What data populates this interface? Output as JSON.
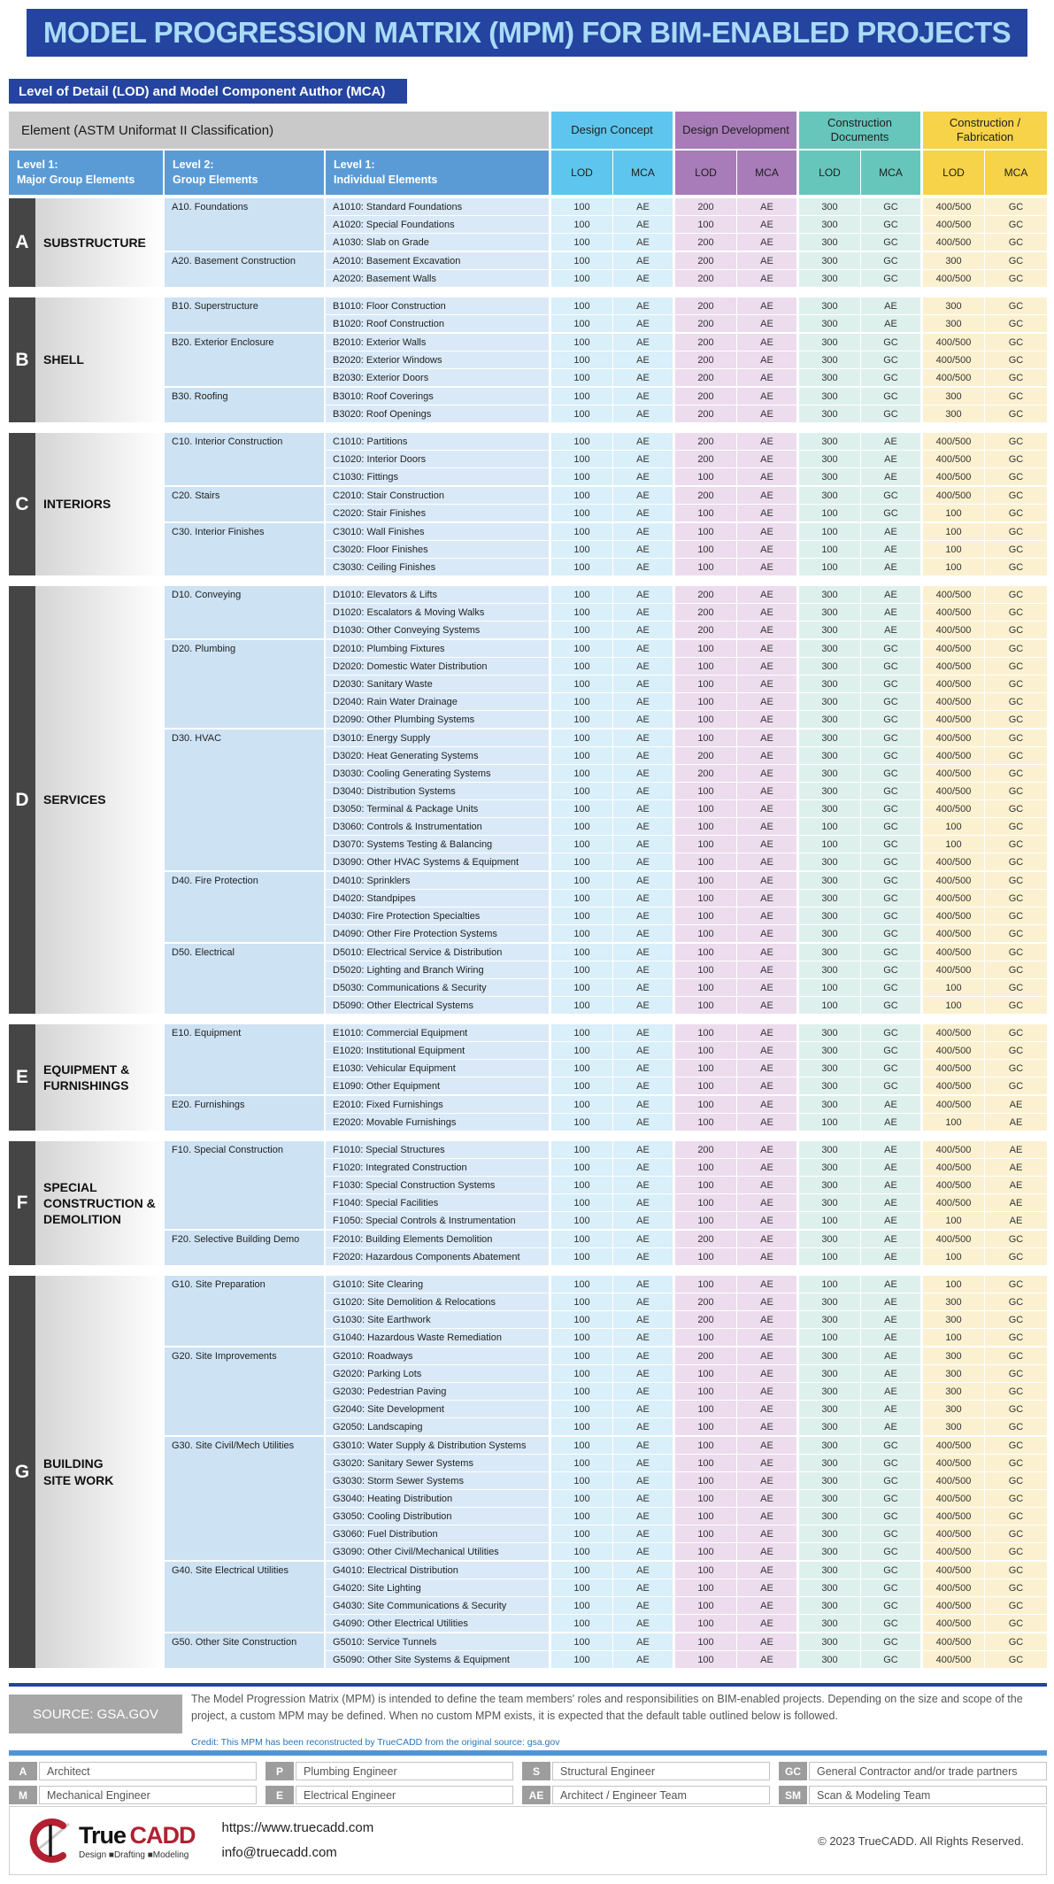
{
  "header": {
    "title": "MODEL PROGRESSION MATRIX (MPM) FOR BIM-ENABLED PROJECTS",
    "subtitle": "Level of Detail (LOD) and Model Component Author (MCA)",
    "element_header": "Element (ASTM Uniformat II Classification)",
    "level_columns": [
      "Level 1:\nMajor Group Elements",
      "Level 2:\nGroup Elements",
      "Level 1:\nIndividual Elements"
    ],
    "phases": [
      {
        "label": "Design Concept",
        "header_color": "#5ec6ee",
        "body_color": "#d9effa"
      },
      {
        "label": "Design Development",
        "header_color": "#a87cb8",
        "body_color": "#ecdcee"
      },
      {
        "label": "Construction Documents",
        "header_color": "#67c6bb",
        "body_color": "#def0eb"
      },
      {
        "label": "Construction / Fabrication",
        "header_color": "#f6d348",
        "body_color": "#fbf1d0"
      }
    ],
    "sub_columns": [
      "LOD",
      "MCA"
    ]
  },
  "sections": [
    {
      "letter": "A",
      "name": "SUBSTRUCTURE",
      "groups": [
        {
          "label": "A10. Foundations",
          "items": [
            {
              "n": "A1010: Standard Foundations",
              "v": "100 AE 200 AE 300 GC 400/500 GC"
            },
            {
              "n": "A1020: Special Foundations",
              "v": "100 AE 100 AE 300 GC 400/500 GC"
            },
            {
              "n": "A1030: Slab on Grade",
              "v": "100 AE 200 AE 300 GC 400/500 GC"
            }
          ]
        },
        {
          "label": "A20. Basement Construction",
          "items": [
            {
              "n": "A2010: Basement Excavation",
              "v": "100 AE 200 AE 300 GC 300 GC"
            },
            {
              "n": "A2020: Basement Walls",
              "v": "100 AE 200 AE 300 GC 400/500 GC"
            }
          ]
        }
      ]
    },
    {
      "letter": "B",
      "name": "SHELL",
      "groups": [
        {
          "label": "B10. Superstructure",
          "items": [
            {
              "n": "B1010: Floor Construction",
              "v": "100 AE 200 AE 300 AE 300 GC"
            },
            {
              "n": "B1020: Roof Construction",
              "v": "100 AE 200 AE 300 AE 300 GC"
            }
          ]
        },
        {
          "label": "B20. Exterior Enclosure",
          "items": [
            {
              "n": "B2010: Exterior Walls",
              "v": "100 AE 200 AE 300 GC 400/500 GC"
            },
            {
              "n": "B2020: Exterior Windows",
              "v": "100 AE 200 AE 300 GC 400/500 GC"
            },
            {
              "n": "B2030: Exterior Doors",
              "v": "100 AE 200 AE 300 GC 400/500 GC"
            }
          ]
        },
        {
          "label": "B30. Roofing",
          "items": [
            {
              "n": "B3010: Roof Coverings",
              "v": "100 AE 200 AE 300 GC 300 GC"
            },
            {
              "n": "B3020: Roof Openings",
              "v": "100 AE 200 AE 300 GC 300 GC"
            }
          ]
        }
      ]
    },
    {
      "letter": "C",
      "name": "INTERIORS",
      "groups": [
        {
          "label": "C10. Interior Construction",
          "items": [
            {
              "n": "C1010: Partitions",
              "v": "100 AE 200 AE 300 AE 400/500 GC"
            },
            {
              "n": "C1020: Interior Doors",
              "v": "100 AE 200 AE 300 AE 400/500 GC"
            },
            {
              "n": "C1030: Fittings",
              "v": "100 AE 100 AE 300 AE 400/500 GC"
            }
          ]
        },
        {
          "label": "C20. Stairs",
          "items": [
            {
              "n": "C2010: Stair Construction",
              "v": "100 AE 200 AE 300 GC 400/500 GC"
            },
            {
              "n": "C2020: Stair Finishes",
              "v": "100 AE 100 AE 100 GC 100 GC"
            }
          ]
        },
        {
          "label": "C30. Interior Finishes",
          "items": [
            {
              "n": "C3010: Wall Finishes",
              "v": "100 AE 100 AE 100 AE 100 GC"
            },
            {
              "n": "C3020: Floor Finishes",
              "v": "100 AE 100 AE 100 AE 100 GC"
            },
            {
              "n": "C3030: Ceiling Finishes",
              "v": "100 AE 100 AE 100 AE 100 GC"
            }
          ]
        }
      ]
    },
    {
      "letter": "D",
      "name": "SERVICES",
      "groups": [
        {
          "label": "D10. Conveying",
          "items": [
            {
              "n": "D1010: Elevators & Lifts",
              "v": "100 AE 200 AE 300 AE 400/500 GC"
            },
            {
              "n": "D1020: Escalators & Moving Walks",
              "v": "100 AE 200 AE 300 AE 400/500 GC"
            },
            {
              "n": "D1030: Other Conveying Systems",
              "v": "100 AE 200 AE 300 AE 400/500 GC"
            }
          ]
        },
        {
          "label": "D20. Plumbing",
          "items": [
            {
              "n": "D2010: Plumbing Fixtures",
              "v": "100 AE 100 AE 300 GC 400/500 GC"
            },
            {
              "n": "D2020: Domestic Water Distribution",
              "v": "100 AE 100 AE 300 GC 400/500 GC"
            },
            {
              "n": "D2030: Sanitary Waste",
              "v": "100 AE 100 AE 300 GC 400/500 GC"
            },
            {
              "n": "D2040: Rain Water Drainage",
              "v": "100 AE 100 AE 300 GC 400/500 GC"
            },
            {
              "n": "D2090: Other Plumbing Systems",
              "v": "100 AE 100 AE 300 GC 400/500 GC"
            }
          ]
        },
        {
          "label": "D30. HVAC",
          "items": [
            {
              "n": "D3010: Energy Supply",
              "v": "100 AE 100 AE 300 GC 400/500 GC"
            },
            {
              "n": "D3020: Heat Generating Systems",
              "v": "100 AE 200 AE 300 GC 400/500 GC"
            },
            {
              "n": "D3030: Cooling Generating Systems",
              "v": "100 AE 200 AE 300 GC 400/500 GC"
            },
            {
              "n": "D3040: Distribution Systems",
              "v": "100 AE 100 AE 300 GC 400/500 GC"
            },
            {
              "n": "D3050: Terminal & Package Units",
              "v": "100 AE 100 AE 300 GC 400/500 GC"
            },
            {
              "n": "D3060: Controls & Instrumentation",
              "v": "100 AE 100 AE 100 GC 100 GC"
            },
            {
              "n": "D3070: Systems Testing & Balancing",
              "v": "100 AE 100 AE 100 GC 100 GC"
            },
            {
              "n": "D3090: Other HVAC Systems & Equipment",
              "v": "100 AE 100 AE 300 GC 400/500 GC"
            }
          ]
        },
        {
          "label": "D40. Fire Protection",
          "items": [
            {
              "n": "D4010: Sprinklers",
              "v": "100 AE 100 AE 300 GC 400/500 GC"
            },
            {
              "n": "D4020: Standpipes",
              "v": "100 AE 100 AE 300 GC 400/500 GC"
            },
            {
              "n": "D4030: Fire Protection Specialties",
              "v": "100 AE 100 AE 300 GC 400/500 GC"
            },
            {
              "n": "D4090: Other Fire Protection Systems",
              "v": "100 AE 100 AE 300 GC 400/500 GC"
            }
          ]
        },
        {
          "label": "D50. Electrical",
          "items": [
            {
              "n": "D5010: Electrical Service & Distribution",
              "v": "100 AE 100 AE 300 GC 400/500 GC"
            },
            {
              "n": "D5020: Lighting and Branch Wiring",
              "v": "100 AE 100 AE 300 GC 400/500 GC"
            },
            {
              "n": "D5030: Communications & Security",
              "v": "100 AE 100 AE 100 GC 100 GC"
            },
            {
              "n": "D5090: Other Electrical Systems",
              "v": "100 AE 100 AE 100 GC 100 GC"
            }
          ]
        }
      ]
    },
    {
      "letter": "E",
      "name": "EQUIPMENT &\nFURNISHINGS",
      "groups": [
        {
          "label": "E10. Equipment",
          "items": [
            {
              "n": "E1010: Commercial Equipment",
              "v": "100 AE 100 AE 300 GC 400/500 GC"
            },
            {
              "n": "E1020: Institutional Equipment",
              "v": "100 AE 100 AE 300 GC 400/500 GC"
            },
            {
              "n": "E1030: Vehicular Equipment",
              "v": "100 AE 100 AE 300 GC 400/500 GC"
            },
            {
              "n": "E1090: Other Equipment",
              "v": "100 AE 100 AE 300 GC 400/500 GC"
            }
          ]
        },
        {
          "label": "E20. Furnishings",
          "items": [
            {
              "n": "E2010: Fixed Furnishings",
              "v": "100 AE 100 AE 300 AE 400/500 AE"
            },
            {
              "n": "E2020: Movable Furnishings",
              "v": "100 AE 100 AE 100 AE 100 AE"
            }
          ]
        }
      ]
    },
    {
      "letter": "F",
      "name": "SPECIAL\nCONSTRUCTION &\nDEMOLITION",
      "groups": [
        {
          "label": "F10. Special Construction",
          "items": [
            {
              "n": "F1010: Special Structures",
              "v": "100 AE 200 AE 300 AE 400/500 AE"
            },
            {
              "n": "F1020: Integrated Construction",
              "v": "100 AE 100 AE 300 AE 400/500 AE"
            },
            {
              "n": "F1030: Special Construction Systems",
              "v": "100 AE 100 AE 300 AE 400/500 AE"
            },
            {
              "n": "F1040: Special Facilities",
              "v": "100 AE 100 AE 300 AE 400/500 AE"
            },
            {
              "n": "F1050: Special Controls & Instrumentation",
              "v": "100 AE 100 AE 100 AE 100 AE"
            }
          ]
        },
        {
          "label": "F20. Selective Building Demo",
          "items": [
            {
              "n": "F2010: Building Elements Demolition",
              "v": "100 AE 200 AE 300 AE 400/500 GC"
            },
            {
              "n": "F2020: Hazardous Components Abatement",
              "v": "100 AE 100 AE 100 AE 100 GC"
            }
          ]
        }
      ]
    },
    {
      "letter": "G",
      "name": "BUILDING\nSITE WORK",
      "groups": [
        {
          "label": "G10. Site Preparation",
          "items": [
            {
              "n": "G1010: Site Clearing",
              "v": "100 AE 100 AE 100 AE 100 GC"
            },
            {
              "n": "G1020: Site Demolition & Relocations",
              "v": "100 AE 200 AE 300 AE 300 GC"
            },
            {
              "n": "G1030: Site Earthwork",
              "v": "100 AE 200 AE 300 AE 300 GC"
            },
            {
              "n": "G1040: Hazardous Waste Remediation",
              "v": "100 AE 100 AE 100 AE 100 GC"
            }
          ]
        },
        {
          "label": "G20. Site Improvements",
          "items": [
            {
              "n": "G2010: Roadways",
              "v": "100 AE 200 AE 300 AE 300 GC"
            },
            {
              "n": "G2020: Parking Lots",
              "v": "100 AE 100 AE 300 AE 300 GC"
            },
            {
              "n": "G2030: Pedestrian Paving",
              "v": "100 AE 100 AE 300 AE 300 GC"
            },
            {
              "n": "G2040: Site Development",
              "v": "100 AE 100 AE 300 AE 300 GC"
            },
            {
              "n": "G2050: Landscaping",
              "v": "100 AE 100 AE 300 AE 300 GC"
            }
          ]
        },
        {
          "label": "G30. Site Civil/Mech Utilities",
          "items": [
            {
              "n": "G3010: Water Supply & Distribution Systems",
              "v": "100 AE 100 AE 300 GC 400/500 GC"
            },
            {
              "n": "G3020: Sanitary Sewer Systems",
              "v": "100 AE 100 AE 300 GC 400/500 GC"
            },
            {
              "n": "G3030: Storm Sewer Systems",
              "v": "100 AE 100 AE 300 GC 400/500 GC"
            },
            {
              "n": "G3040: Heating Distribution",
              "v": "100 AE 100 AE 300 GC 400/500 GC"
            },
            {
              "n": "G3050: Cooling Distribution",
              "v": "100 AE 100 AE 300 GC 400/500 GC"
            },
            {
              "n": "G3060: Fuel Distribution",
              "v": "100 AE 100 AE 300 GC 400/500 GC"
            },
            {
              "n": "G3090: Other Civil/Mechanical Utilities",
              "v": "100 AE 100 AE 300 GC 400/500 GC"
            }
          ]
        },
        {
          "label": "G40. Site Electrical Utilities",
          "items": [
            {
              "n": "G4010: Electrical Distribution",
              "v": "100 AE 100 AE 300 GC 400/500 GC"
            },
            {
              "n": "G4020: Site Lighting",
              "v": "100 AE 100 AE 300 GC 400/500 GC"
            },
            {
              "n": "G4030: Site Communications & Security",
              "v": "100 AE 100 AE 300 GC 400/500 GC"
            },
            {
              "n": "G4090: Other Electrical Utilities",
              "v": "100 AE 100 AE 300 GC 400/500 GC"
            }
          ]
        },
        {
          "label": "G50. Other Site Construction",
          "items": [
            {
              "n": "G5010: Service Tunnels",
              "v": "100 AE 100 AE 300 GC 400/500 GC"
            },
            {
              "n": "G5090: Other Site Systems & Equipment",
              "v": "100 AE 100 AE 300 GC 400/500 GC"
            }
          ]
        }
      ]
    }
  ],
  "notes": {
    "source_label": "SOURCE: GSA.GOV",
    "paragraph": "The Model Progression Matrix (MPM) is intended to define the team members' roles and responsibilities on BIM-enabled projects. Depending on the size and scope of the project, a custom MPM may be defined. When no custom MPM exists, it is expected that the default table outlined below is followed.",
    "credit": "Credit: This MPM has been reconstructed by TrueCADD from the original source: gsa.gov"
  },
  "legend": {
    "rows": [
      [
        {
          "code": "A",
          "label": "Architect"
        },
        {
          "code": "P",
          "label": "Plumbing Engineer"
        },
        {
          "code": "S",
          "label": "Structural Engineer"
        },
        {
          "code": "GC",
          "label": "General Contractor and/or trade partners"
        }
      ],
      [
        {
          "code": "M",
          "label": "Mechanical Engineer"
        },
        {
          "code": "E",
          "label": "Electrical Engineer"
        },
        {
          "code": "AE",
          "label": "Architect / Engineer Team"
        },
        {
          "code": "SM",
          "label": "Scan & Modeling Team"
        }
      ]
    ]
  },
  "brand": {
    "logo_text_1": "True",
    "logo_text_2": "CADD",
    "tagline": "Design ■Drafting ■Modeling",
    "website": "https://www.truecadd.com",
    "email": "info@truecadd.com",
    "copyright": "© 2023 TrueCADD. All Rights Reserved."
  },
  "colors": {
    "title_bar": "#2444a0",
    "title_text": "#a9dbf6",
    "level_header": "#5b9bd5",
    "element_header": "#c9c9c9",
    "section_letter_block": "#454545",
    "group_cell": "#cde2f3",
    "item_cell": "#d9e9f7",
    "rule_blue": "#4f96d8",
    "legend_code_box": "#9d9d9d",
    "logo_red": "#b22032"
  }
}
